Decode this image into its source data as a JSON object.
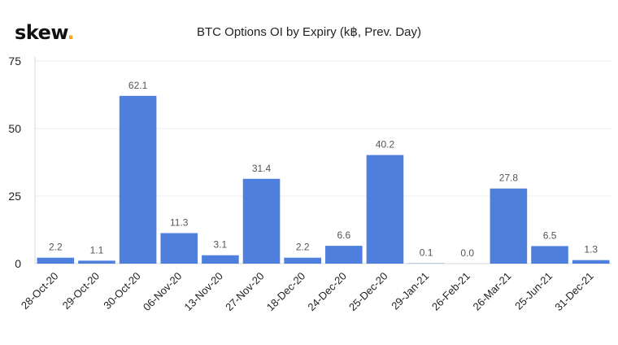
{
  "brand": {
    "name": "skew",
    "dot": ".",
    "dot_color": "#f5a623"
  },
  "chart_data": {
    "type": "bar",
    "title": "BTC Options OI by Expiry (k฿, Prev. Day)",
    "xlabel": "",
    "ylabel": "",
    "ylim": [
      0,
      75
    ],
    "yticks": [
      0,
      25,
      50,
      75
    ],
    "grid": true,
    "bar_color": "#4f7fdc",
    "categories": [
      "28-Oct-20",
      "29-Oct-20",
      "30-Oct-20",
      "06-Nov-20",
      "13-Nov-20",
      "27-Nov-20",
      "18-Dec-20",
      "24-Dec-20",
      "25-Dec-20",
      "29-Jan-21",
      "26-Feb-21",
      "26-Mar-21",
      "25-Jun-21",
      "31-Dec-21"
    ],
    "values": [
      2.2,
      1.1,
      62.1,
      11.3,
      3.1,
      31.4,
      2.2,
      6.6,
      40.2,
      0.1,
      0.0,
      27.8,
      6.5,
      1.3
    ],
    "data_labels": [
      "2.2",
      "1.1",
      "62.1",
      "11.3",
      "3.1",
      "31.4",
      "2.2",
      "6.6",
      "40.2",
      "0.1",
      "0.0",
      "27.8",
      "6.5",
      "1.3"
    ]
  }
}
